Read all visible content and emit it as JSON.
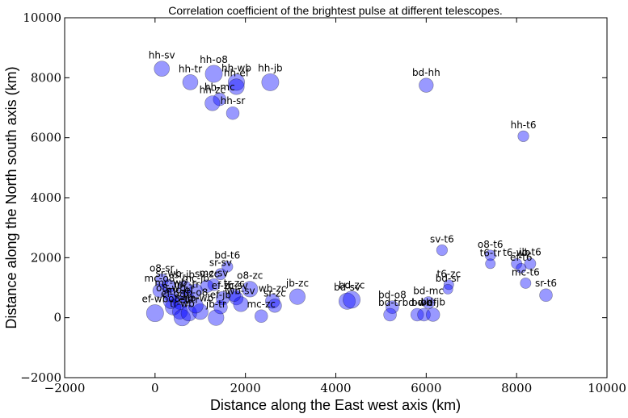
{
  "chart_data": {
    "type": "scatter",
    "title": "Correlation coefficient of the brightest pulse at different telescopes.",
    "xlabel": "Distance along the East west axis (km)",
    "ylabel": "Distance along the North south axis (km)",
    "xlim": [
      -2000,
      10000
    ],
    "ylim": [
      -2000,
      10000
    ],
    "x_ticks": [
      -2000,
      0,
      2000,
      4000,
      6000,
      8000,
      10000
    ],
    "y_ticks": [
      -2000,
      0,
      2000,
      4000,
      6000,
      8000,
      10000
    ],
    "x_tick_labels": [
      "−2000",
      "0",
      "2000",
      "4000",
      "6000",
      "8000",
      "10000"
    ],
    "y_tick_labels": [
      "−2000",
      "0",
      "2000",
      "4000",
      "6000",
      "8000",
      "10000"
    ],
    "grid": false,
    "marker_color": "#0000ff",
    "points": [
      {
        "label": "hh-sv",
        "x": 150,
        "y": 8300,
        "size": 0.72
      },
      {
        "label": "hh-tr",
        "x": 780,
        "y": 7850,
        "size": 0.72
      },
      {
        "label": "hh-o8",
        "x": 1300,
        "y": 8130,
        "size": 0.85
      },
      {
        "label": "hh-wb",
        "x": 1800,
        "y": 7850,
        "size": 0.8
      },
      {
        "label": "hh-ef",
        "x": 1800,
        "y": 7700,
        "size": 0.75
      },
      {
        "label": "hh-mc",
        "x": 1430,
        "y": 7280,
        "size": 0.55
      },
      {
        "label": "hh-zc",
        "x": 1270,
        "y": 7150,
        "size": 0.7
      },
      {
        "label": "hh-sr",
        "x": 1720,
        "y": 6820,
        "size": 0.55
      },
      {
        "label": "hh-jb",
        "x": 2550,
        "y": 7850,
        "size": 0.85
      },
      {
        "label": "bd-hh",
        "x": 6000,
        "y": 7750,
        "size": 0.65
      },
      {
        "label": "hh-t6",
        "x": 8150,
        "y": 6050,
        "size": 0.42
      },
      {
        "label": "sv-t6",
        "x": 6350,
        "y": 2250,
        "size": 0.42
      },
      {
        "label": "o8-t6",
        "x": 7420,
        "y": 2080,
        "size": 0.4
      },
      {
        "label": "t6-tr",
        "x": 7420,
        "y": 1800,
        "size": 0.35
      },
      {
        "label": "t6-wb",
        "x": 8000,
        "y": 1800,
        "size": 0.4
      },
      {
        "label": "ef-t6",
        "x": 8100,
        "y": 1650,
        "size": 0.35
      },
      {
        "label": "jb-t6",
        "x": 8300,
        "y": 1800,
        "size": 0.45
      },
      {
        "label": "mc-t6",
        "x": 8200,
        "y": 1150,
        "size": 0.4
      },
      {
        "label": "sr-t6",
        "x": 8650,
        "y": 750,
        "size": 0.55
      },
      {
        "label": "t6-zc",
        "x": 6500,
        "y": 1100,
        "size": 0.35
      },
      {
        "label": "bd-sr",
        "x": 6480,
        "y": 950,
        "size": 0.35
      },
      {
        "label": "bd-mc",
        "x": 6050,
        "y": 500,
        "size": 0.5
      },
      {
        "label": "bd-o8",
        "x": 5250,
        "y": 350,
        "size": 0.55
      },
      {
        "label": "bd-tr",
        "x": 5200,
        "y": 100,
        "size": 0.55
      },
      {
        "label": "bd-wb",
        "x": 5800,
        "y": 100,
        "size": 0.55
      },
      {
        "label": "bd-ef",
        "x": 5950,
        "y": 100,
        "size": 0.55
      },
      {
        "label": "bd-jb",
        "x": 6150,
        "y": 100,
        "size": 0.6
      },
      {
        "label": "bd-sv",
        "x": 4250,
        "y": 550,
        "size": 0.8
      },
      {
        "label": "bd-zc",
        "x": 4350,
        "y": 600,
        "size": 0.85
      },
      {
        "label": "jb-zc",
        "x": 3150,
        "y": 700,
        "size": 0.75
      },
      {
        "label": "wb-zc",
        "x": 2600,
        "y": 550,
        "size": 0.65
      },
      {
        "label": "sr-zc",
        "x": 2650,
        "y": 400,
        "size": 0.6
      },
      {
        "label": "mc-zc",
        "x": 2350,
        "y": 50,
        "size": 0.55
      },
      {
        "label": "o8-zc",
        "x": 2100,
        "y": 950,
        "size": 0.75
      },
      {
        "label": "bd-t6",
        "x": 1600,
        "y": 1700,
        "size": 0.42
      },
      {
        "label": "sr-sv",
        "x": 1450,
        "y": 1450,
        "size": 0.45
      },
      {
        "label": "mc-sv",
        "x": 1300,
        "y": 1100,
        "size": 0.5
      },
      {
        "label": "sv-zc",
        "x": 1150,
        "y": 1050,
        "size": 0.55
      },
      {
        "label": "jb-sv",
        "x": 1800,
        "y": 650,
        "size": 0.6
      },
      {
        "label": "wb-sv",
        "x": 1900,
        "y": 450,
        "size": 0.7
      },
      {
        "label": "tr-zc",
        "x": 1750,
        "y": 750,
        "size": 0.55
      },
      {
        "label": "ef-zc",
        "x": 1500,
        "y": 650,
        "size": 0.6
      },
      {
        "label": "jb-tr",
        "x": 1350,
        "y": 0,
        "size": 0.75
      },
      {
        "label": "ef-jb",
        "x": 1450,
        "y": 350,
        "size": 0.6
      },
      {
        "label": "o8-sr",
        "x": 150,
        "y": 1250,
        "size": 0.55
      },
      {
        "label": "sr-wb",
        "x": 300,
        "y": 1050,
        "size": 0.6
      },
      {
        "label": "sr-jb",
        "x": 650,
        "y": 1000,
        "size": 0.65
      },
      {
        "label": "mc-o8",
        "x": 100,
        "y": 900,
        "size": 0.6
      },
      {
        "label": "mc-wb",
        "x": 350,
        "y": 750,
        "size": 0.6
      },
      {
        "label": "mc-jb",
        "x": 900,
        "y": 900,
        "size": 0.6
      },
      {
        "label": "mc-tr",
        "x": 700,
        "y": 700,
        "size": 0.6
      },
      {
        "label": "mc-ef",
        "x": 550,
        "y": 500,
        "size": 0.6
      },
      {
        "label": "ef-wb",
        "x": 0,
        "y": 150,
        "size": 0.85
      },
      {
        "label": "ef-o8",
        "x": 400,
        "y": 350,
        "size": 0.75
      },
      {
        "label": "o8-tr",
        "x": 550,
        "y": 200,
        "size": 0.7
      },
      {
        "label": "tr-wb",
        "x": 600,
        "y": 0,
        "size": 0.8
      },
      {
        "label": "ef-tr",
        "x": 750,
        "y": 150,
        "size": 0.75
      },
      {
        "label": "jb-wb",
        "x": 1000,
        "y": 200,
        "size": 0.75
      },
      {
        "label": "jb-o8",
        "x": 900,
        "y": 400,
        "size": 0.7
      },
      {
        "label": "o8-wb",
        "x": 350,
        "y": 550,
        "size": 0.7
      }
    ]
  }
}
